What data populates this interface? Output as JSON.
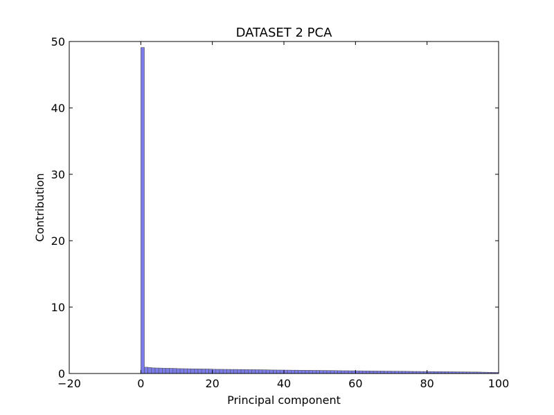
{
  "chart_data": {
    "type": "bar",
    "title": "DATASET 2 PCA",
    "xlabel": "Principal component",
    "ylabel": "Contribution",
    "xlim": [
      -20,
      100
    ],
    "ylim": [
      0,
      50
    ],
    "xticks": [
      -20,
      0,
      20,
      40,
      60,
      80,
      100
    ],
    "xtick_labels": [
      "−20",
      "0",
      "20",
      "40",
      "60",
      "80",
      "100"
    ],
    "yticks": [
      0,
      10,
      20,
      30,
      40,
      50
    ],
    "ytick_labels": [
      "0",
      "10",
      "20",
      "30",
      "40",
      "50"
    ],
    "grid": false,
    "bar_color": "#7b7bea",
    "bar_edge_color": "#555555",
    "x": [
      0,
      1,
      2,
      3,
      4,
      5,
      6,
      7,
      8,
      9,
      10,
      11,
      12,
      13,
      14,
      15,
      16,
      17,
      18,
      19,
      20,
      21,
      22,
      23,
      24,
      25,
      26,
      27,
      28,
      29,
      30,
      31,
      32,
      33,
      34,
      35,
      36,
      37,
      38,
      39,
      40,
      41,
      42,
      43,
      44,
      45,
      46,
      47,
      48,
      49,
      50,
      51,
      52,
      53,
      54,
      55,
      56,
      57,
      58,
      59,
      60,
      61,
      62,
      63,
      64,
      65,
      66,
      67,
      68,
      69,
      70,
      71,
      72,
      73,
      74,
      75,
      76,
      77,
      78,
      79,
      80,
      81,
      82,
      83,
      84,
      85,
      86,
      87,
      88,
      89,
      90,
      91,
      92,
      93,
      94,
      95,
      96,
      97,
      98,
      99
    ],
    "values": [
      49.1,
      0.95,
      0.9,
      0.85,
      0.83,
      0.82,
      0.8,
      0.79,
      0.78,
      0.77,
      0.74,
      0.73,
      0.72,
      0.71,
      0.7,
      0.7,
      0.69,
      0.68,
      0.68,
      0.67,
      0.64,
      0.63,
      0.63,
      0.62,
      0.62,
      0.61,
      0.61,
      0.6,
      0.6,
      0.59,
      0.58,
      0.58,
      0.57,
      0.57,
      0.56,
      0.55,
      0.53,
      0.53,
      0.52,
      0.52,
      0.51,
      0.51,
      0.5,
      0.5,
      0.49,
      0.49,
      0.48,
      0.48,
      0.47,
      0.47,
      0.46,
      0.46,
      0.45,
      0.45,
      0.44,
      0.43,
      0.42,
      0.42,
      0.41,
      0.41,
      0.4,
      0.4,
      0.39,
      0.39,
      0.38,
      0.38,
      0.37,
      0.37,
      0.36,
      0.36,
      0.35,
      0.35,
      0.34,
      0.34,
      0.33,
      0.32,
      0.31,
      0.31,
      0.3,
      0.3,
      0.29,
      0.29,
      0.28,
      0.28,
      0.27,
      0.27,
      0.26,
      0.26,
      0.25,
      0.25,
      0.24,
      0.24,
      0.23,
      0.23,
      0.22,
      0.2,
      0.19,
      0.18,
      0.17,
      0.16
    ]
  }
}
